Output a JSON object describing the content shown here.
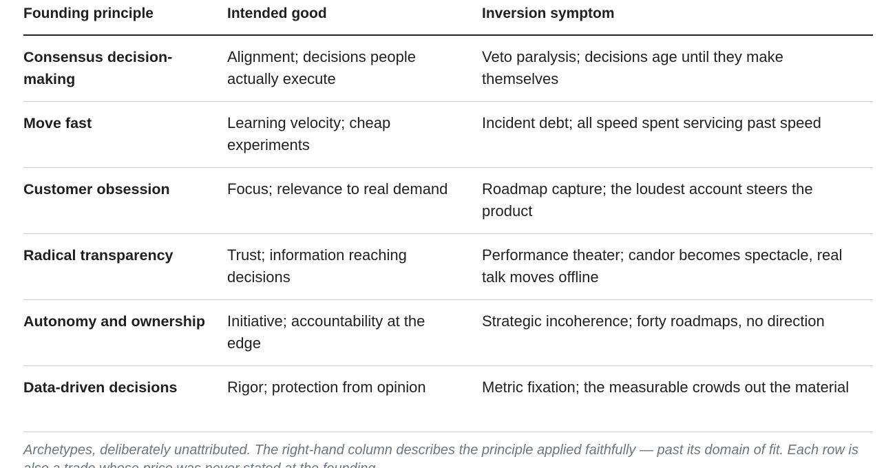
{
  "table": {
    "headers": [
      "Founding principle",
      "Intended good",
      "Inversion symptom"
    ],
    "rows": [
      {
        "principle": "Consensus decision-making",
        "good": "Alignment; decisions people actually execute",
        "symptom": "Veto paralysis; decisions age until they make themselves"
      },
      {
        "principle": "Move fast",
        "good": "Learning velocity; cheap experiments",
        "symptom": "Incident debt; all speed spent servicing past speed"
      },
      {
        "principle": "Customer obsession",
        "good": "Focus; relevance to real demand",
        "symptom": "Roadmap capture; the loudest account steers the product"
      },
      {
        "principle": "Radical transparency",
        "good": "Trust; information reaching decisions",
        "symptom": "Performance theater; candor becomes spectacle, real talk moves offline"
      },
      {
        "principle": "Autonomy and ownership",
        "good": "Initiative; accountability at the edge",
        "symptom": "Strategic incoherence; forty roadmaps, no direction"
      },
      {
        "principle": "Data-driven decisions",
        "good": "Rigor; protection from opinion",
        "symptom": "Metric fixation; the measurable crowds out the material"
      }
    ]
  },
  "caption": "Archetypes, deliberately unattributed. The right-hand column describes the principle applied faithfully — past its domain of fit. Each row is also a trade whose price was never stated at the founding."
}
